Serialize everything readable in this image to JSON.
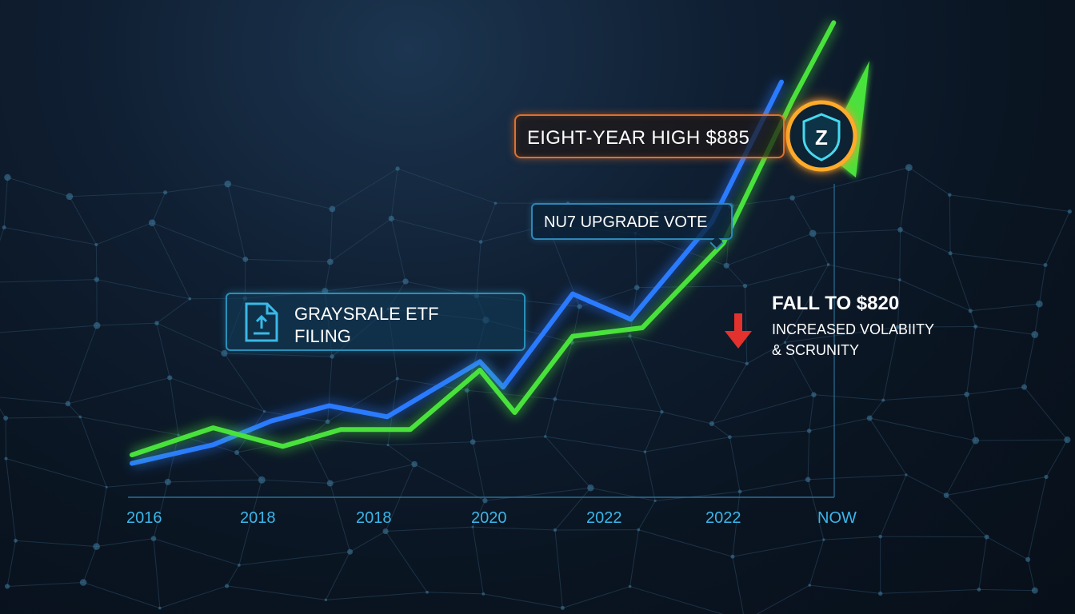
{
  "chart_data": {
    "type": "line",
    "x_tick_labels": [
      "2016",
      "2018",
      "2018",
      "2020",
      "2022",
      "2022",
      "NOW"
    ],
    "series": [
      {
        "key": "blue",
        "color": "#2a7bff",
        "points": [
          [
            0,
            40
          ],
          [
            0.7,
            62
          ],
          [
            1.2,
            90
          ],
          [
            1.7,
            108
          ],
          [
            2.2,
            95
          ],
          [
            3.0,
            160
          ],
          [
            3.2,
            130
          ],
          [
            3.8,
            240
          ],
          [
            4.3,
            210
          ],
          [
            5.0,
            325
          ],
          [
            5.6,
            490
          ]
        ]
      },
      {
        "key": "green",
        "color": "#49e23c",
        "points": [
          [
            0,
            50
          ],
          [
            0.7,
            82
          ],
          [
            1.3,
            60
          ],
          [
            1.8,
            80
          ],
          [
            2.4,
            80
          ],
          [
            3.0,
            150
          ],
          [
            3.3,
            100
          ],
          [
            3.8,
            190
          ],
          [
            4.4,
            200
          ],
          [
            5.1,
            300
          ],
          [
            5.7,
            470
          ],
          [
            6.05,
            560
          ]
        ]
      }
    ],
    "annotations": {
      "high": {
        "text": "EIGHT-YEAR HIGH $885",
        "accent": "#e0702a"
      },
      "vote": {
        "text": "NU7 UPGRADE VOTE"
      },
      "etf": {
        "line1": "GRAYSRALE ETF",
        "line2": "FILING"
      },
      "fall": {
        "title": "FALL TO $820",
        "note_line1": "INCREASED VOLABIITY",
        "note_line2": "& SCRUNITY",
        "arrow_color": "#e3322d"
      },
      "badge_letter": "Z"
    },
    "axis_color": "#3bb6e8",
    "grid": "decorative network mesh"
  }
}
